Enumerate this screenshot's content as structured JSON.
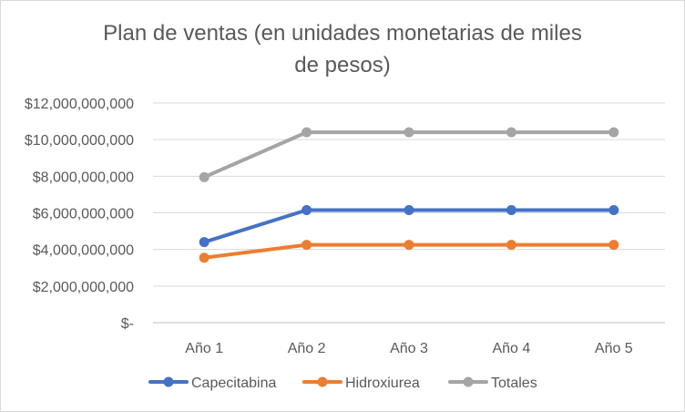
{
  "chart_data": {
    "type": "line",
    "title_lines": [
      "Plan de ventas (en unidades monetarias de miles",
      "de pesos)"
    ],
    "categories": [
      "Año 1",
      "Año 2",
      "Año 3",
      "Año 4",
      "Año 5"
    ],
    "series": [
      {
        "name": "Capecitabina",
        "color": "#4472c4",
        "values": [
          4400000000,
          6150000000,
          6150000000,
          6150000000,
          6150000000
        ]
      },
      {
        "name": "Hidroxiurea",
        "color": "#ed7d31",
        "values": [
          3550000000,
          4250000000,
          4250000000,
          4250000000,
          4250000000
        ]
      },
      {
        "name": "Totales",
        "color": "#a5a5a5",
        "values": [
          7950000000,
          10400000000,
          10400000000,
          10400000000,
          10400000000
        ]
      }
    ],
    "ylim": [
      0,
      12000000000
    ],
    "y_ticks": [
      0,
      2000000000,
      4000000000,
      6000000000,
      8000000000,
      10000000000,
      12000000000
    ],
    "y_tick_labels": [
      "$-",
      "$2,000,000,000",
      "$4,000,000,000",
      "$6,000,000,000",
      "$8,000,000,000",
      "$10,000,000,000",
      "$12,000,000,000"
    ],
    "grid": true,
    "legend_position": "bottom"
  }
}
